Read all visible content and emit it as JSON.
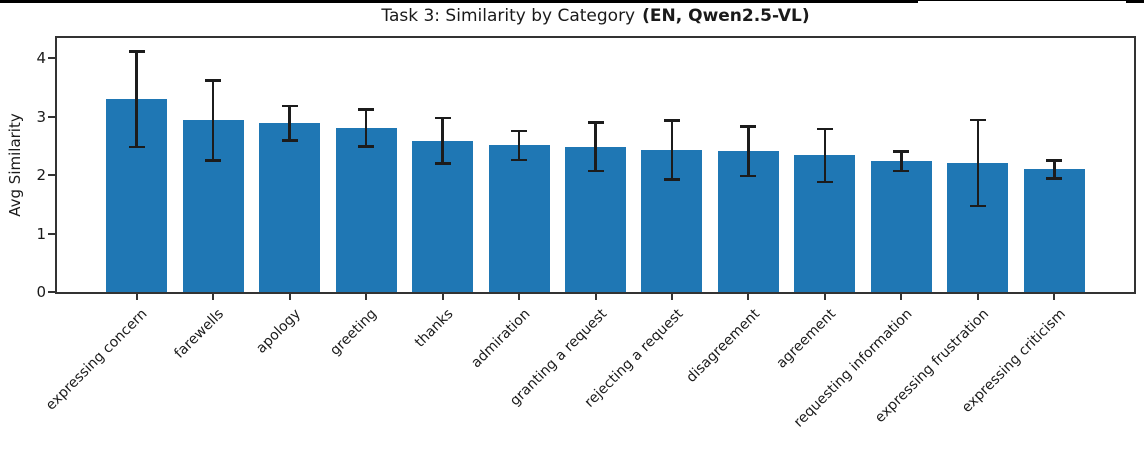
{
  "figure": {
    "title_main": "Task 3: Similarity by Category",
    "title_suffix": "(EN, Qwen2.5-VL)",
    "ylabel": "Avg Similarity"
  },
  "chart_data": {
    "type": "bar",
    "title": "Task 3: Similarity by Category (EN, Qwen2.5-VL)",
    "xlabel": "",
    "ylabel": "Avg Similarity",
    "ylim": [
      0,
      4.35
    ],
    "yticks": [
      0,
      1,
      2,
      3,
      4
    ],
    "grid": false,
    "legend": "none",
    "bar_color": "#1f77b4",
    "error_bar_color": "#1c1c1c",
    "x_tick_rotation_deg": 45,
    "categories": [
      "expressing concern",
      "farewells",
      "apology",
      "greeting",
      "thanks",
      "admiration",
      "granting a request",
      "rejecting a request",
      "disagreement",
      "agreement",
      "requesting information",
      "expressing frustration",
      "expressing criticism"
    ],
    "values": [
      3.3,
      2.94,
      2.89,
      2.81,
      2.59,
      2.51,
      2.49,
      2.43,
      2.41,
      2.34,
      2.24,
      2.21,
      2.1
    ],
    "errors": [
      0.82,
      0.69,
      0.3,
      0.32,
      0.39,
      0.25,
      0.42,
      0.51,
      0.43,
      0.46,
      0.17,
      0.74,
      0.16
    ]
  }
}
